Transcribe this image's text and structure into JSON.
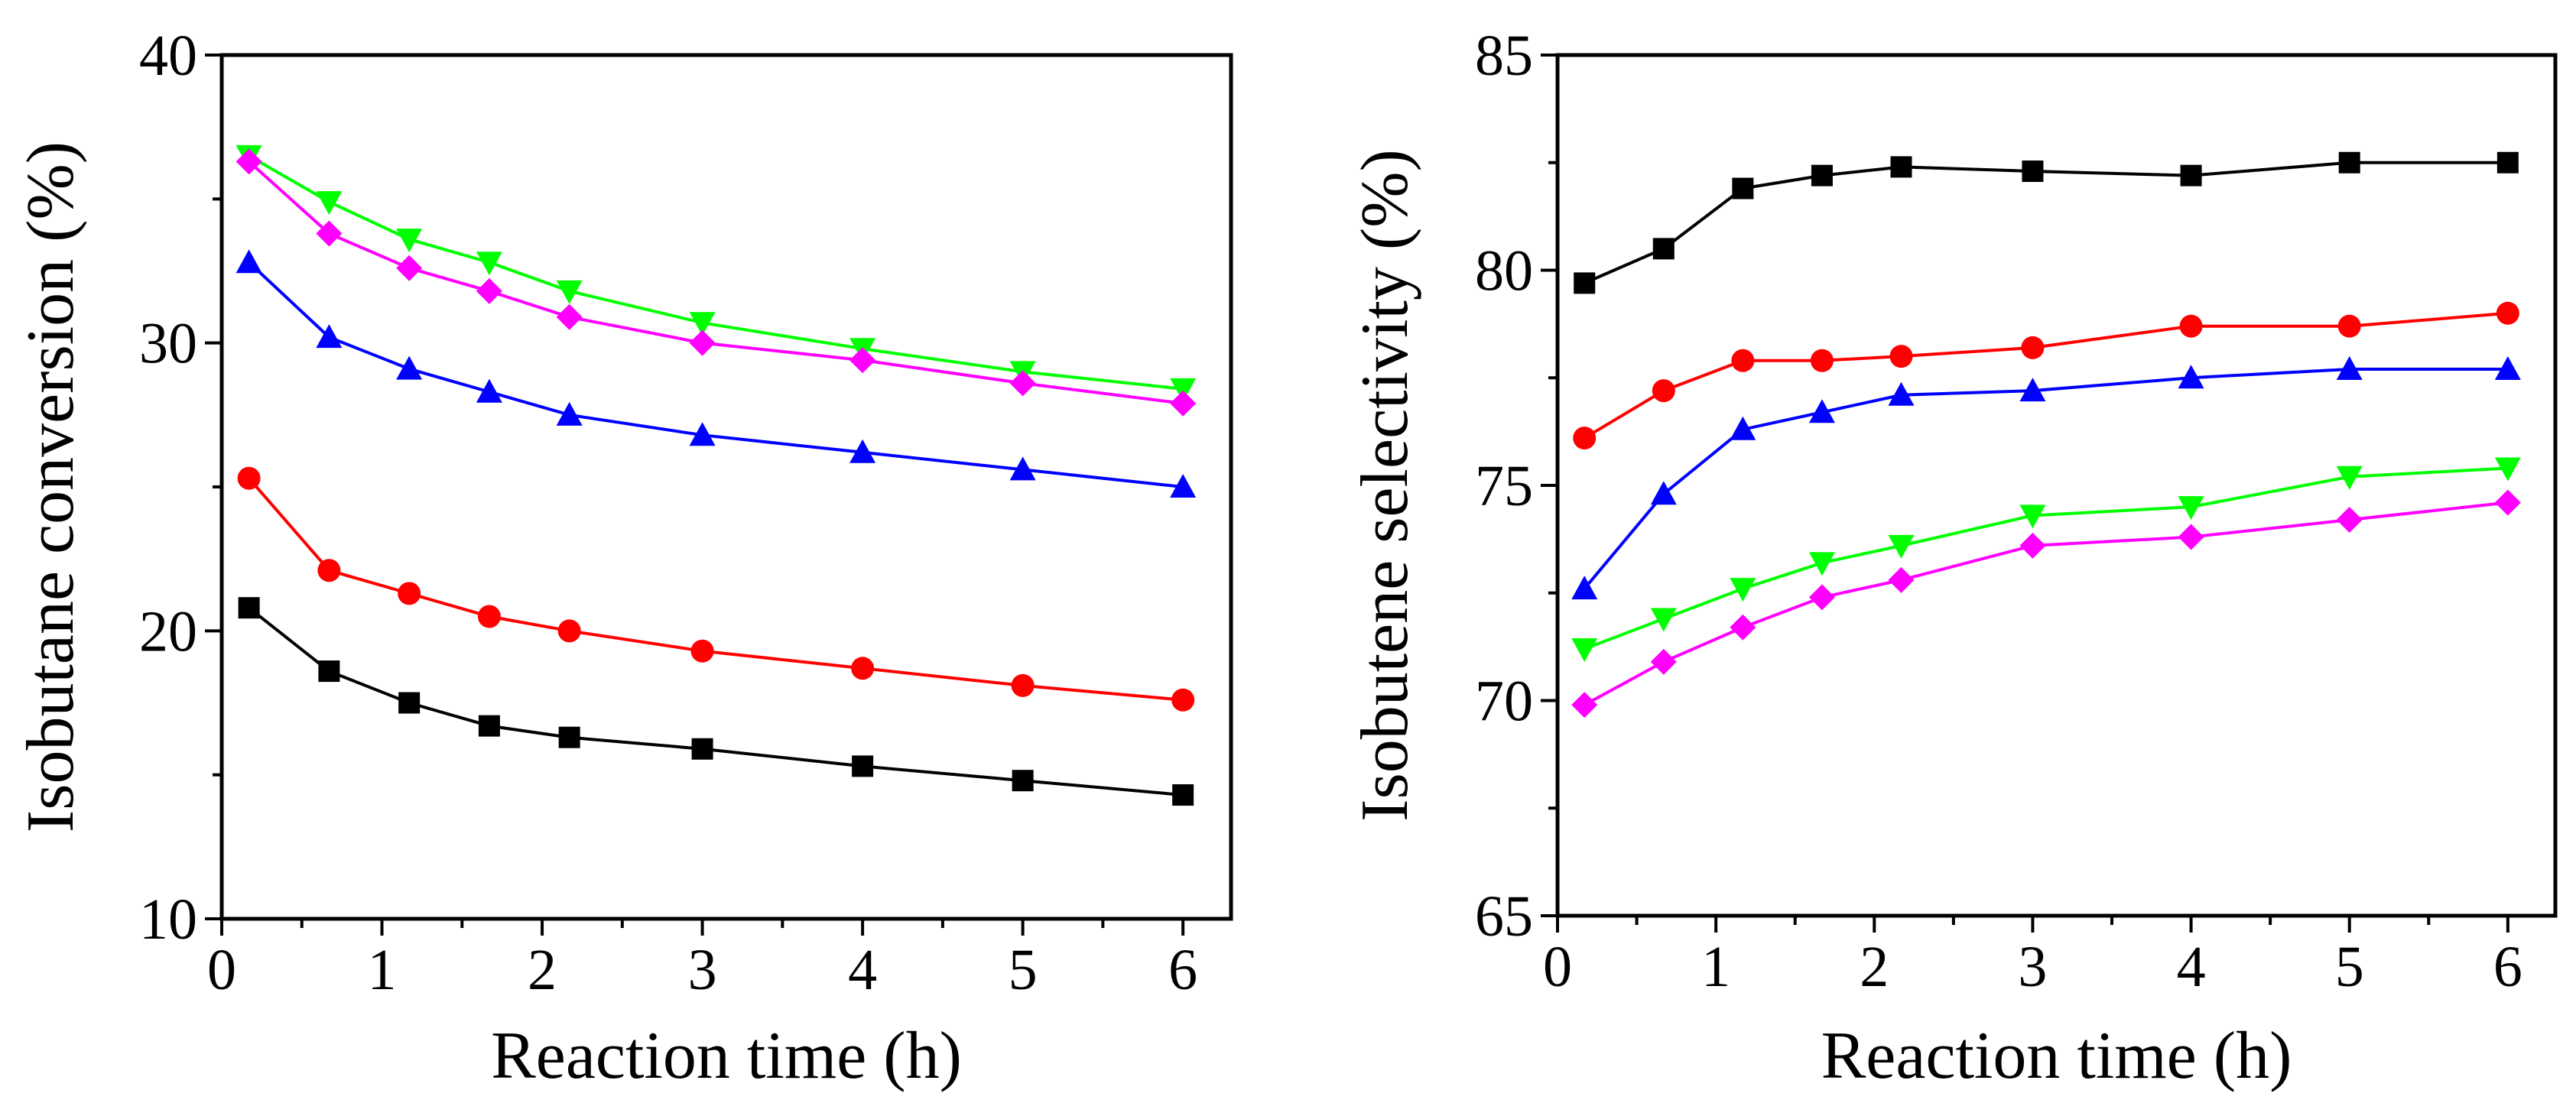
{
  "chart_data": [
    {
      "type": "line",
      "title": "",
      "xlabel": "Reaction time (h)",
      "ylabel": "Isobutane conversion (%)",
      "xlim": [
        0,
        6.3
      ],
      "ylim": [
        10,
        40
      ],
      "xticks": [
        "0",
        "1",
        "2",
        "3",
        "4",
        "5",
        "6"
      ],
      "yticks": [
        "10",
        "20",
        "30",
        "40"
      ],
      "x": [
        0.17,
        0.67,
        1.17,
        1.67,
        2.17,
        3,
        4,
        5,
        6
      ],
      "series": [
        {
          "name": "series-black",
          "color": "#000000",
          "marker": "square",
          "values": [
            20.8,
            18.6,
            17.5,
            16.7,
            16.3,
            15.9,
            15.3,
            14.8,
            14.3
          ]
        },
        {
          "name": "series-red",
          "color": "#ff0000",
          "marker": "circle",
          "values": [
            25.3,
            22.1,
            21.3,
            20.5,
            20.0,
            19.3,
            18.7,
            18.1,
            17.6
          ]
        },
        {
          "name": "series-blue",
          "color": "#0000ff",
          "marker": "triangle-up",
          "values": [
            32.8,
            30.2,
            29.1,
            28.3,
            27.5,
            26.8,
            26.2,
            25.6,
            25.0
          ]
        },
        {
          "name": "series-green",
          "color": "#00ff00",
          "marker": "triangle-down",
          "values": [
            36.5,
            34.9,
            33.6,
            32.8,
            31.8,
            30.7,
            29.8,
            29.0,
            28.4
          ]
        },
        {
          "name": "series-magenta",
          "color": "#ff00ff",
          "marker": "diamond",
          "values": [
            36.3,
            33.8,
            32.6,
            31.8,
            30.9,
            30.0,
            29.4,
            28.6,
            27.9
          ]
        }
      ]
    },
    {
      "type": "line",
      "title": "",
      "xlabel": "Reaction time (h)",
      "ylabel": "Isobutene selectivity (%)",
      "xlim": [
        0,
        6.3
      ],
      "ylim": [
        65,
        85
      ],
      "xticks": [
        "0",
        "1",
        "2",
        "3",
        "4",
        "5",
        "6"
      ],
      "yticks": [
        "65",
        "70",
        "75",
        "80",
        "85"
      ],
      "x": [
        0.17,
        0.67,
        1.17,
        1.67,
        2.17,
        3,
        4,
        5,
        6
      ],
      "series": [
        {
          "name": "series-black",
          "color": "#000000",
          "marker": "square",
          "values": [
            79.7,
            80.5,
            81.9,
            82.2,
            82.4,
            82.3,
            82.2,
            82.5,
            82.5
          ]
        },
        {
          "name": "series-red",
          "color": "#ff0000",
          "marker": "circle",
          "values": [
            76.1,
            77.2,
            77.9,
            77.9,
            78.0,
            78.2,
            78.7,
            78.7,
            79.0
          ]
        },
        {
          "name": "series-blue",
          "color": "#0000ff",
          "marker": "triangle-up",
          "values": [
            72.6,
            74.8,
            76.3,
            76.7,
            77.1,
            77.2,
            77.5,
            77.7,
            77.7
          ]
        },
        {
          "name": "series-green",
          "color": "#00ff00",
          "marker": "triangle-down",
          "values": [
            71.2,
            71.9,
            72.6,
            73.2,
            73.6,
            74.3,
            74.5,
            75.2,
            75.4
          ]
        },
        {
          "name": "series-magenta",
          "color": "#ff00ff",
          "marker": "diamond",
          "values": [
            69.9,
            70.9,
            71.7,
            72.4,
            72.8,
            73.6,
            73.8,
            74.2,
            74.6
          ]
        }
      ]
    }
  ]
}
